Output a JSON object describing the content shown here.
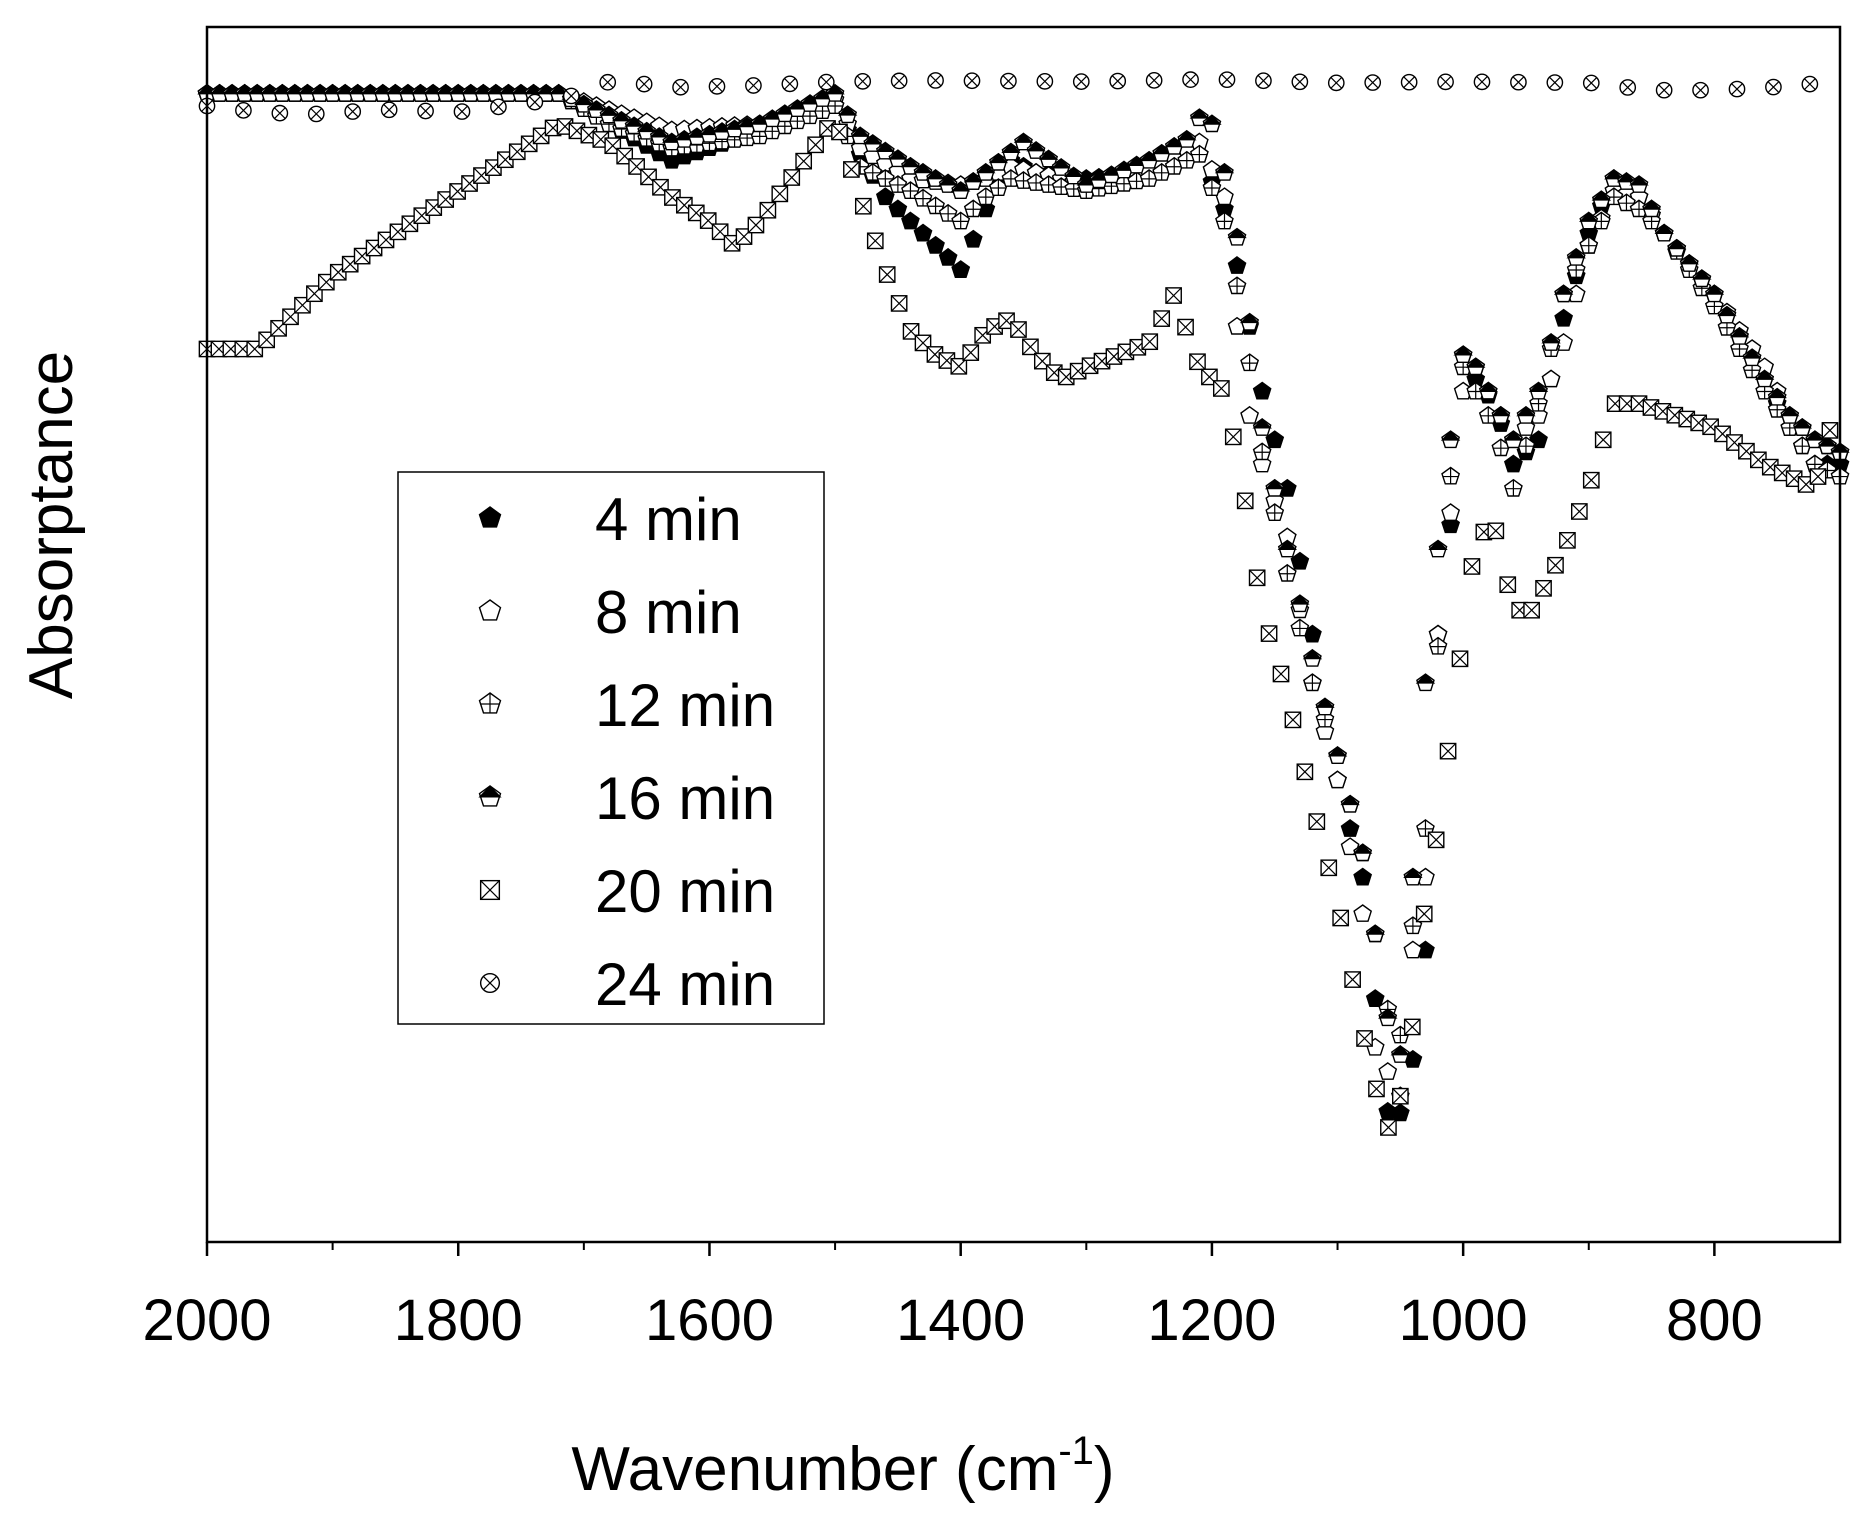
{
  "chart_data": {
    "type": "scatter",
    "title": "",
    "xlabel": "Wavenumber (cm",
    "xlabel_sup": "-1",
    "xlabel_close": ")",
    "ylabel": "Absorptance",
    "xlim": [
      2000,
      700
    ],
    "ylim": [
      0,
      1
    ],
    "x_reversed": true,
    "grid": false,
    "legend_position": "center-left",
    "y_ticks_shown": false,
    "xticks": [
      2000,
      1800,
      1600,
      1400,
      1200,
      1000,
      800
    ],
    "xtick_labels": [
      "2000",
      "1800",
      "1600",
      "1400",
      "1200",
      "1000",
      "800"
    ],
    "legend_entries": [
      "4 min",
      "8 min",
      "12 min",
      "16 min",
      "20 min",
      "24 min"
    ],
    "series": [
      {
        "name": "4 min",
        "marker": "pentagon-filled",
        "anchors": [
          [
            2000,
            0.945
          ],
          [
            1720,
            0.945
          ],
          [
            1630,
            0.89
          ],
          [
            1500,
            0.935
          ],
          [
            1480,
            0.895
          ],
          [
            1460,
            0.86
          ],
          [
            1400,
            0.8
          ],
          [
            1380,
            0.85
          ],
          [
            1360,
            0.89
          ],
          [
            1340,
            0.88
          ],
          [
            1300,
            0.875
          ],
          [
            1250,
            0.88
          ],
          [
            1210,
            0.895
          ],
          [
            1190,
            0.85
          ],
          [
            1175,
            0.78
          ],
          [
            1160,
            0.7
          ],
          [
            1140,
            0.62
          ],
          [
            1120,
            0.5
          ],
          [
            1100,
            0.38
          ],
          [
            1080,
            0.3
          ],
          [
            1065,
            0.15
          ],
          [
            1058,
            0.09
          ],
          [
            1048,
            0.11
          ],
          [
            1038,
            0.16
          ],
          [
            1030,
            0.24
          ],
          [
            1020,
            0.5
          ],
          [
            1010,
            0.59
          ],
          [
            1000,
            0.73
          ],
          [
            990,
            0.71
          ],
          [
            975,
            0.69
          ],
          [
            960,
            0.64
          ],
          [
            940,
            0.66
          ],
          [
            920,
            0.76
          ],
          [
            900,
            0.83
          ],
          [
            880,
            0.875
          ],
          [
            860,
            0.86
          ],
          [
            840,
            0.83
          ],
          [
            800,
            0.78
          ],
          [
            760,
            0.71
          ],
          [
            740,
            0.67
          ],
          [
            720,
            0.64
          ],
          [
            700,
            0.64
          ]
        ]
      },
      {
        "name": "8 min",
        "marker": "pentagon-open",
        "anchors": [
          [
            2000,
            0.945
          ],
          [
            1720,
            0.945
          ],
          [
            1630,
            0.915
          ],
          [
            1560,
            0.92
          ],
          [
            1500,
            0.94
          ],
          [
            1480,
            0.9
          ],
          [
            1440,
            0.875
          ],
          [
            1400,
            0.87
          ],
          [
            1380,
            0.875
          ],
          [
            1360,
            0.885
          ],
          [
            1300,
            0.87
          ],
          [
            1250,
            0.88
          ],
          [
            1210,
            0.905
          ],
          [
            1190,
            0.86
          ],
          [
            1175,
            0.7
          ],
          [
            1160,
            0.64
          ],
          [
            1140,
            0.58
          ],
          [
            1120,
            0.46
          ],
          [
            1100,
            0.38
          ],
          [
            1080,
            0.27
          ],
          [
            1070,
            0.16
          ],
          [
            1060,
            0.14
          ],
          [
            1050,
            0.12
          ],
          [
            1040,
            0.24
          ],
          [
            1030,
            0.3
          ],
          [
            1020,
            0.5
          ],
          [
            1010,
            0.6
          ],
          [
            1000,
            0.7
          ],
          [
            990,
            0.72
          ],
          [
            975,
            0.69
          ],
          [
            960,
            0.66
          ],
          [
            940,
            0.68
          ],
          [
            920,
            0.74
          ],
          [
            900,
            0.82
          ],
          [
            880,
            0.865
          ],
          [
            860,
            0.86
          ],
          [
            840,
            0.83
          ],
          [
            800,
            0.78
          ],
          [
            760,
            0.72
          ],
          [
            740,
            0.68
          ],
          [
            720,
            0.66
          ],
          [
            700,
            0.65
          ]
        ]
      },
      {
        "name": "12 min",
        "marker": "pentagon-cross",
        "anchors": [
          [
            2000,
            0.945
          ],
          [
            1720,
            0.945
          ],
          [
            1680,
            0.92
          ],
          [
            1630,
            0.9
          ],
          [
            1560,
            0.91
          ],
          [
            1500,
            0.935
          ],
          [
            1480,
            0.885
          ],
          [
            1440,
            0.865
          ],
          [
            1400,
            0.84
          ],
          [
            1380,
            0.86
          ],
          [
            1360,
            0.875
          ],
          [
            1300,
            0.865
          ],
          [
            1250,
            0.875
          ],
          [
            1210,
            0.895
          ],
          [
            1190,
            0.84
          ],
          [
            1175,
            0.76
          ],
          [
            1160,
            0.65
          ],
          [
            1140,
            0.55
          ],
          [
            1120,
            0.46
          ],
          [
            1100,
            0.4
          ],
          [
            1080,
            0.32
          ],
          [
            1065,
            0.22
          ],
          [
            1058,
            0.18
          ],
          [
            1050,
            0.17
          ],
          [
            1040,
            0.26
          ],
          [
            1030,
            0.34
          ],
          [
            1020,
            0.49
          ],
          [
            1010,
            0.63
          ],
          [
            1000,
            0.72
          ],
          [
            990,
            0.7
          ],
          [
            975,
            0.67
          ],
          [
            960,
            0.62
          ],
          [
            940,
            0.69
          ],
          [
            920,
            0.78
          ],
          [
            900,
            0.82
          ],
          [
            880,
            0.86
          ],
          [
            860,
            0.85
          ],
          [
            840,
            0.83
          ],
          [
            800,
            0.77
          ],
          [
            760,
            0.7
          ],
          [
            740,
            0.67
          ],
          [
            720,
            0.64
          ],
          [
            700,
            0.63
          ]
        ]
      },
      {
        "name": "16 min",
        "marker": "pentagon-half",
        "anchors": [
          [
            2000,
            0.945
          ],
          [
            1720,
            0.945
          ],
          [
            1630,
            0.905
          ],
          [
            1560,
            0.92
          ],
          [
            1500,
            0.945
          ],
          [
            1480,
            0.91
          ],
          [
            1440,
            0.885
          ],
          [
            1400,
            0.865
          ],
          [
            1380,
            0.88
          ],
          [
            1350,
            0.905
          ],
          [
            1300,
            0.87
          ],
          [
            1250,
            0.89
          ],
          [
            1215,
            0.91
          ],
          [
            1205,
            0.94
          ],
          [
            1190,
            0.88
          ],
          [
            1175,
            0.8
          ],
          [
            1160,
            0.67
          ],
          [
            1140,
            0.57
          ],
          [
            1120,
            0.48
          ],
          [
            1100,
            0.4
          ],
          [
            1080,
            0.32
          ],
          [
            1065,
            0.22
          ],
          [
            1058,
            0.17
          ],
          [
            1048,
            0.15
          ],
          [
            1040,
            0.3
          ],
          [
            1030,
            0.46
          ],
          [
            1020,
            0.57
          ],
          [
            1010,
            0.66
          ],
          [
            1000,
            0.73
          ],
          [
            990,
            0.72
          ],
          [
            975,
            0.69
          ],
          [
            960,
            0.66
          ],
          [
            940,
            0.7
          ],
          [
            920,
            0.78
          ],
          [
            900,
            0.84
          ],
          [
            880,
            0.875
          ],
          [
            860,
            0.87
          ],
          [
            840,
            0.83
          ],
          [
            800,
            0.78
          ],
          [
            760,
            0.71
          ],
          [
            740,
            0.68
          ],
          [
            720,
            0.66
          ],
          [
            700,
            0.65
          ]
        ]
      },
      {
        "name": "20 min",
        "marker": "square-x",
        "anchors": [
          [
            2000,
            0.735
          ],
          [
            1960,
            0.735
          ],
          [
            1900,
            0.795
          ],
          [
            1800,
            0.865
          ],
          [
            1720,
            0.92
          ],
          [
            1680,
            0.905
          ],
          [
            1630,
            0.86
          ],
          [
            1600,
            0.84
          ],
          [
            1580,
            0.82
          ],
          [
            1560,
            0.84
          ],
          [
            1500,
            0.925
          ],
          [
            1480,
            0.86
          ],
          [
            1460,
            0.8
          ],
          [
            1440,
            0.75
          ],
          [
            1420,
            0.73
          ],
          [
            1400,
            0.72
          ],
          [
            1380,
            0.75
          ],
          [
            1360,
            0.76
          ],
          [
            1340,
            0.73
          ],
          [
            1320,
            0.71
          ],
          [
            1300,
            0.72
          ],
          [
            1250,
            0.74
          ],
          [
            1230,
            0.78
          ],
          [
            1210,
            0.72
          ],
          [
            1190,
            0.7
          ],
          [
            1175,
            0.62
          ],
          [
            1160,
            0.52
          ],
          [
            1140,
            0.45
          ],
          [
            1120,
            0.36
          ],
          [
            1100,
            0.28
          ],
          [
            1085,
            0.2
          ],
          [
            1075,
            0.15
          ],
          [
            1065,
            0.11
          ],
          [
            1058,
            0.09
          ],
          [
            1050,
            0.12
          ],
          [
            1040,
            0.18
          ],
          [
            1030,
            0.28
          ],
          [
            1020,
            0.34
          ],
          [
            1010,
            0.42
          ],
          [
            1000,
            0.5
          ],
          [
            990,
            0.58
          ],
          [
            975,
            0.59
          ],
          [
            960,
            0.52
          ],
          [
            945,
            0.52
          ],
          [
            920,
            0.57
          ],
          [
            900,
            0.62
          ],
          [
            880,
            0.69
          ],
          [
            860,
            0.69
          ],
          [
            800,
            0.67
          ],
          [
            760,
            0.64
          ],
          [
            720,
            0.62
          ],
          [
            700,
            0.7
          ]
        ]
      },
      {
        "name": "24 min",
        "marker": "circle-x",
        "anchors": [
          [
            2000,
            0.935
          ],
          [
            1960,
            0.93
          ],
          [
            1920,
            0.928
          ],
          [
            1860,
            0.932
          ],
          [
            1800,
            0.93
          ],
          [
            1740,
            0.938
          ],
          [
            1700,
            0.945
          ],
          [
            1680,
            0.955
          ],
          [
            1660,
            0.955
          ],
          [
            1640,
            0.95
          ],
          [
            1560,
            0.952
          ],
          [
            1500,
            0.955
          ],
          [
            1420,
            0.956
          ],
          [
            1300,
            0.955
          ],
          [
            1200,
            0.957
          ],
          [
            1100,
            0.954
          ],
          [
            1000,
            0.955
          ],
          [
            900,
            0.954
          ],
          [
            880,
            0.953
          ],
          [
            860,
            0.948
          ],
          [
            800,
            0.948
          ],
          [
            760,
            0.95
          ],
          [
            700,
            0.955
          ]
        ]
      }
    ]
  }
}
